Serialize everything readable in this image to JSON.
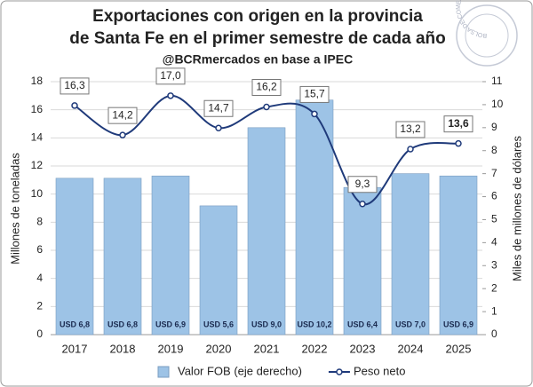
{
  "chart_data": {
    "type": "bar_line",
    "title": [
      "Exportaciones con origen en la provincia",
      "de Santa Fe en el primer semestre de cada año"
    ],
    "subtitle": "@BCRmercados en base a IPEC",
    "logo_text": "BOLSA DE COMERCIO DE ROSARIO",
    "ylabel": "Millones de toneladas",
    "y2label": "Miles de millones de dólares",
    "categories": [
      "2017",
      "2018",
      "2019",
      "2020",
      "2021",
      "2022",
      "2023",
      "2024",
      "2025"
    ],
    "series": [
      {
        "name": "Valor FOB (eje derecho)",
        "type": "bar",
        "axis": "y2",
        "color": "#9dc3e6",
        "values": [
          6.8,
          6.8,
          6.9,
          5.6,
          9.0,
          10.2,
          6.4,
          7.0,
          6.9
        ],
        "value_labels": [
          "USD 6,8",
          "USD 6,8",
          "USD 6,9",
          "USD 5,6",
          "USD 9,0",
          "USD 10,2",
          "USD 6,4",
          "USD 7,0",
          "USD 6,9"
        ]
      },
      {
        "name": "Peso neto",
        "type": "line",
        "axis": "y",
        "color": "#1f3a7a",
        "values": [
          16.3,
          14.2,
          17.0,
          14.7,
          16.2,
          15.7,
          9.3,
          13.2,
          13.6
        ],
        "value_labels": [
          "16,3",
          "14,2",
          "17,0",
          "14,7",
          "16,2",
          "15,7",
          "9,3",
          "13,2",
          "13,6"
        ],
        "bold_label_index": 8
      }
    ],
    "ylim": [
      0,
      18
    ],
    "yticks": [
      0,
      2,
      4,
      6,
      8,
      10,
      12,
      14,
      16,
      18
    ],
    "y2lim": [
      0,
      11
    ],
    "y2ticks": [
      0,
      1,
      2,
      3,
      4,
      5,
      6,
      7,
      8,
      9,
      10,
      11
    ],
    "legend": "bottom"
  }
}
